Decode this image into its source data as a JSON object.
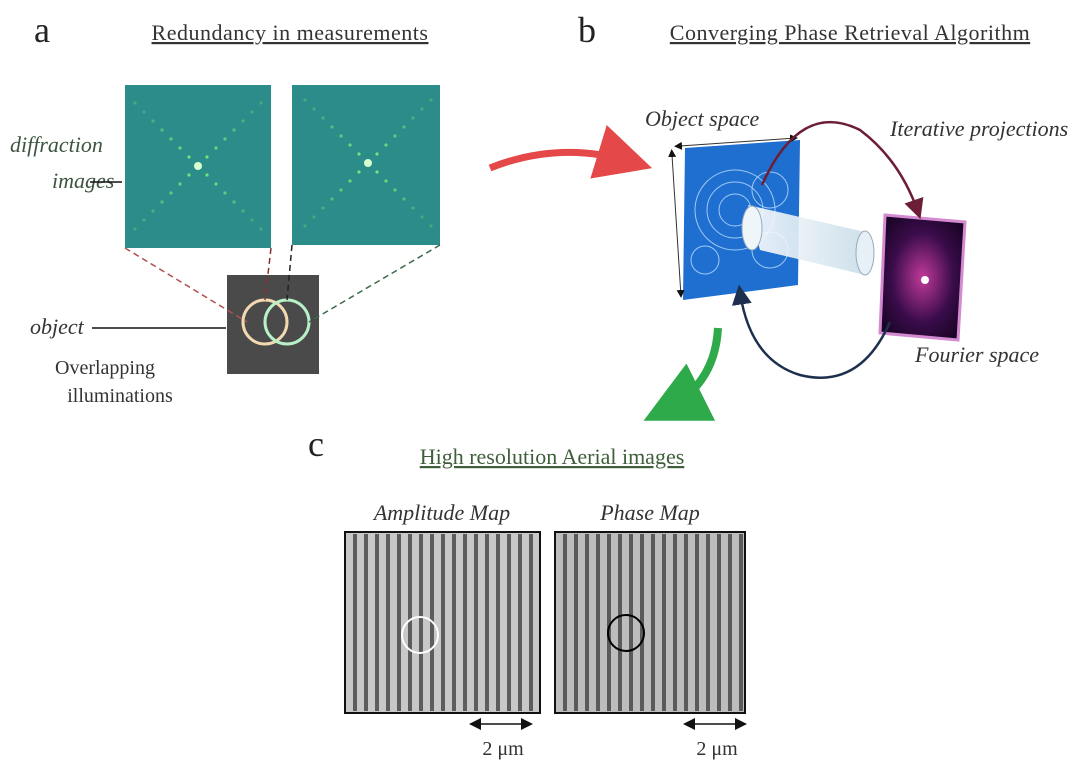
{
  "panel_a": {
    "letter": "a",
    "title": "Redundancy in measurements",
    "diffraction_label": [
      "diffraction",
      "images"
    ],
    "object_label": "object",
    "illumination_label": [
      "Overlapping",
      "illuminations"
    ]
  },
  "panel_b": {
    "letter": "b",
    "title": "Converging Phase Retrieval Algorithm",
    "object_space": "Object space",
    "iterative": "Iterative projections",
    "fourier_space": "Fourier space"
  },
  "panel_c": {
    "letter": "c",
    "title": "High resolution Aerial images",
    "maps": [
      {
        "title": "Amplitude Map",
        "scale_bar": "2 μm"
      },
      {
        "title": "Phase Map",
        "scale_bar": "2 μm"
      }
    ]
  }
}
